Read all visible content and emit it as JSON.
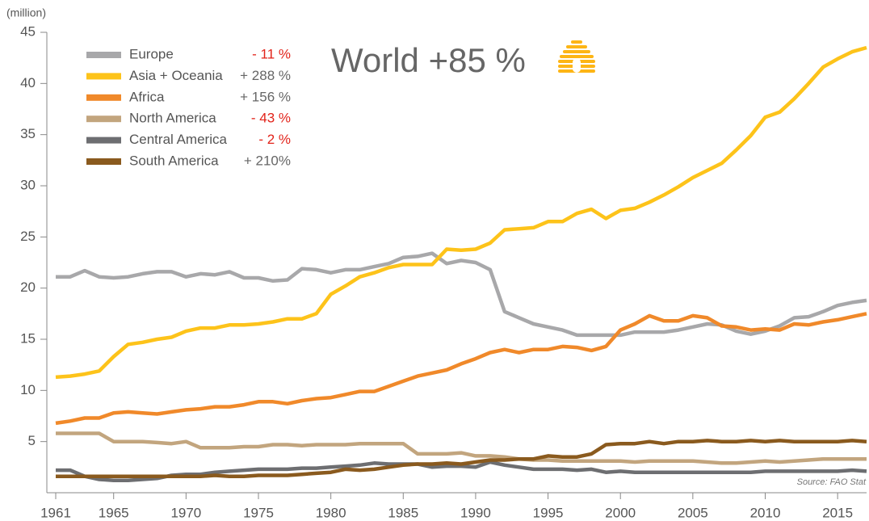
{
  "chart_data": {
    "type": "line",
    "y_unit": "(million)",
    "annotation": "World +85 %",
    "source": "Source: FAO Stat",
    "x": [
      1961,
      1962,
      1963,
      1964,
      1965,
      1966,
      1967,
      1968,
      1969,
      1970,
      1971,
      1972,
      1973,
      1974,
      1975,
      1976,
      1977,
      1978,
      1979,
      1980,
      1981,
      1982,
      1983,
      1984,
      1985,
      1986,
      1987,
      1988,
      1989,
      1990,
      1991,
      1992,
      1993,
      1994,
      1995,
      1996,
      1997,
      1998,
      1999,
      2000,
      2001,
      2002,
      2003,
      2004,
      2005,
      2006,
      2007,
      2008,
      2009,
      2010,
      2011,
      2012,
      2013,
      2014,
      2015,
      2016,
      2017
    ],
    "xlim": [
      1961,
      2017
    ],
    "xticks": [
      1961,
      1965,
      1970,
      1975,
      1980,
      1985,
      1990,
      1995,
      2000,
      2005,
      2010,
      2015
    ],
    "ylim": [
      0,
      45
    ],
    "yticks": [
      5,
      10,
      15,
      20,
      25,
      30,
      35,
      40,
      45
    ],
    "series": [
      {
        "name": "Europe",
        "change": "- 11 %",
        "change_color": "#e2231a",
        "color": "#a8a8aa",
        "values": [
          21.1,
          21.1,
          21.7,
          21.1,
          21.0,
          21.1,
          21.4,
          21.6,
          21.6,
          21.1,
          21.4,
          21.3,
          21.6,
          21.0,
          21.0,
          20.7,
          20.8,
          21.9,
          21.8,
          21.5,
          21.8,
          21.8,
          22.1,
          22.4,
          23.0,
          23.1,
          23.4,
          22.4,
          22.7,
          22.5,
          21.8,
          17.7,
          17.1,
          16.5,
          16.2,
          15.9,
          15.4,
          15.4,
          15.4,
          15.4,
          15.7,
          15.7,
          15.7,
          15.9,
          16.2,
          16.5,
          16.4,
          15.8,
          15.5,
          15.8,
          16.3,
          17.1,
          17.2,
          17.7,
          18.3,
          18.6,
          18.8
        ]
      },
      {
        "name": "Asia + Oceania",
        "change": "+ 288 %",
        "change_color": "#666666",
        "color": "#fdc31a",
        "values": [
          11.3,
          11.4,
          11.6,
          11.9,
          13.3,
          14.5,
          14.7,
          15.0,
          15.2,
          15.8,
          16.1,
          16.1,
          16.4,
          16.4,
          16.5,
          16.7,
          17.0,
          17.0,
          17.5,
          19.4,
          20.2,
          21.1,
          21.5,
          22.0,
          22.3,
          22.3,
          22.3,
          23.8,
          23.7,
          23.8,
          24.4,
          25.7,
          25.8,
          25.9,
          26.5,
          26.5,
          27.3,
          27.7,
          26.8,
          27.6,
          27.8,
          28.4,
          29.1,
          29.9,
          30.8,
          31.5,
          32.2,
          33.5,
          34.9,
          36.7,
          37.2,
          38.5,
          40.0,
          41.6,
          42.4,
          43.1,
          43.5
        ]
      },
      {
        "name": "Africa",
        "change": "+ 156 %",
        "change_color": "#666666",
        "color": "#f0892a",
        "values": [
          6.8,
          7.0,
          7.3,
          7.3,
          7.8,
          7.9,
          7.8,
          7.7,
          7.9,
          8.1,
          8.2,
          8.4,
          8.4,
          8.6,
          8.9,
          8.9,
          8.7,
          9.0,
          9.2,
          9.3,
          9.6,
          9.9,
          9.9,
          10.4,
          10.9,
          11.4,
          11.7,
          12.0,
          12.6,
          13.1,
          13.7,
          14.0,
          13.7,
          14.0,
          14.0,
          14.3,
          14.2,
          13.9,
          14.3,
          15.9,
          16.5,
          17.3,
          16.8,
          16.8,
          17.3,
          17.1,
          16.3,
          16.2,
          15.9,
          16.0,
          15.9,
          16.5,
          16.4,
          16.7,
          16.9,
          17.2,
          17.5
        ]
      },
      {
        "name": "North America",
        "change": "- 43 %",
        "change_color": "#e2231a",
        "color": "#c2a57e",
        "values": [
          5.8,
          5.8,
          5.8,
          5.8,
          5.0,
          5.0,
          5.0,
          4.9,
          4.8,
          5.0,
          4.4,
          4.4,
          4.4,
          4.5,
          4.5,
          4.7,
          4.7,
          4.6,
          4.7,
          4.7,
          4.7,
          4.8,
          4.8,
          4.8,
          4.8,
          3.8,
          3.8,
          3.8,
          3.9,
          3.6,
          3.6,
          3.5,
          3.3,
          3.2,
          3.2,
          3.1,
          3.1,
          3.1,
          3.1,
          3.1,
          3.0,
          3.1,
          3.1,
          3.1,
          3.1,
          3.0,
          2.9,
          2.9,
          3.0,
          3.1,
          3.0,
          3.1,
          3.2,
          3.3,
          3.3,
          3.3,
          3.3
        ]
      },
      {
        "name": "Central America",
        "change": "- 2 %",
        "change_color": "#e2231a",
        "color": "#6d6e71",
        "values": [
          2.2,
          2.2,
          1.6,
          1.3,
          1.2,
          1.2,
          1.3,
          1.4,
          1.7,
          1.8,
          1.8,
          2.0,
          2.1,
          2.2,
          2.3,
          2.3,
          2.3,
          2.4,
          2.4,
          2.5,
          2.6,
          2.7,
          2.9,
          2.8,
          2.8,
          2.8,
          2.5,
          2.6,
          2.6,
          2.5,
          3.0,
          2.7,
          2.5,
          2.3,
          2.3,
          2.3,
          2.2,
          2.3,
          2.0,
          2.1,
          2.0,
          2.0,
          2.0,
          2.0,
          2.0,
          2.0,
          2.0,
          2.0,
          2.0,
          2.1,
          2.1,
          2.1,
          2.1,
          2.1,
          2.1,
          2.2,
          2.1
        ]
      },
      {
        "name": "South America",
        "change": "+ 210%",
        "change_color": "#666666",
        "color": "#8a5a1e",
        "values": [
          1.6,
          1.6,
          1.6,
          1.6,
          1.6,
          1.6,
          1.6,
          1.6,
          1.6,
          1.6,
          1.6,
          1.7,
          1.6,
          1.6,
          1.7,
          1.7,
          1.7,
          1.8,
          1.9,
          2.0,
          2.3,
          2.2,
          2.3,
          2.5,
          2.7,
          2.8,
          2.8,
          2.9,
          2.8,
          3.0,
          3.2,
          3.2,
          3.3,
          3.3,
          3.6,
          3.5,
          3.5,
          3.8,
          4.7,
          4.8,
          4.8,
          5.0,
          4.8,
          5.0,
          5.0,
          5.1,
          5.0,
          5.0,
          5.1,
          5.0,
          5.1,
          5.0,
          5.0,
          5.0,
          5.0,
          5.1,
          5.0
        ]
      }
    ]
  }
}
